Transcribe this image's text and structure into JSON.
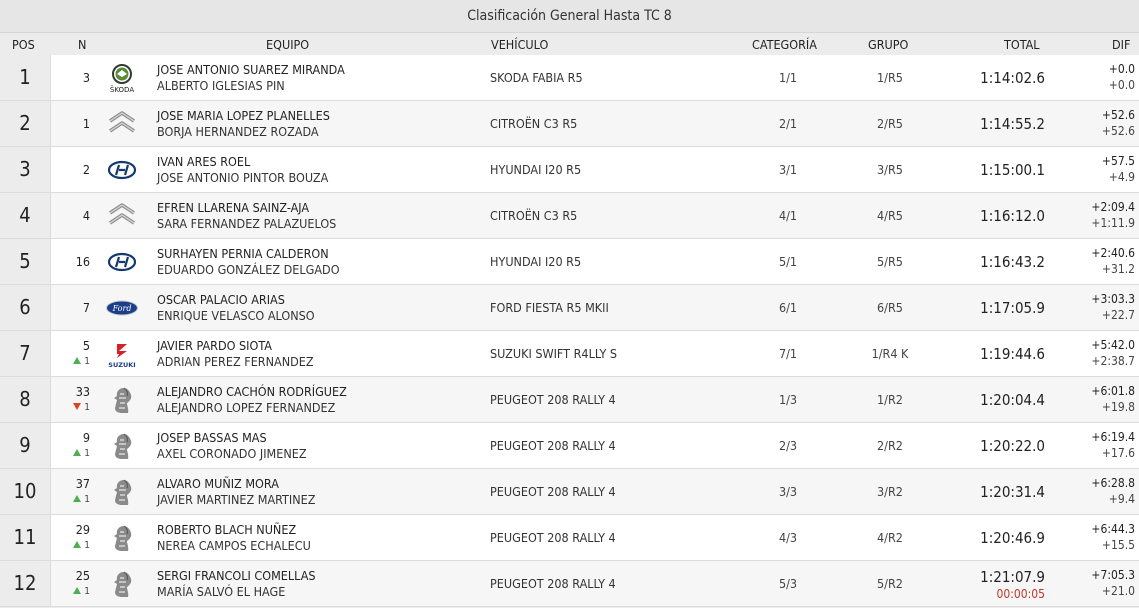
{
  "title": "Clasificación General Hasta TC 8",
  "headers": {
    "pos": "POS",
    "n": "N",
    "equipo": "EQUIPO",
    "vehiculo": "VEHÍCULO",
    "categoria": "CATEGORÍA",
    "grupo": "GRUPO",
    "total": "TOTAL",
    "dif": "DIF"
  },
  "colors": {
    "up": "#4caf50",
    "down": "#d9441f",
    "penalty": "#c0392b"
  },
  "rows": [
    {
      "pos": "1",
      "n": "3",
      "trend": "",
      "trend_dir": "",
      "brand": "skoda-logo",
      "brand_text": "ŠKODA",
      "driver": "JOSE ANTONIO SUAREZ MIRANDA",
      "codriver": "ALBERTO IGLESIAS PIN",
      "vehicle": "SKODA FABIA R5",
      "cat": "1/1",
      "grp": "1/R5",
      "total": "1:14:02.6",
      "penalty": "",
      "dif1": "+0.0",
      "dif2": "+0.0"
    },
    {
      "pos": "2",
      "n": "1",
      "trend": "",
      "trend_dir": "",
      "brand": "citroen-logo",
      "brand_text": "",
      "driver": "JOSE MARIA LOPEZ PLANELLES",
      "codriver": "BORJA HERNANDEZ ROZADA",
      "vehicle": "CITROËN C3 R5",
      "cat": "2/1",
      "grp": "2/R5",
      "total": "1:14:55.2",
      "penalty": "",
      "dif1": "+52.6",
      "dif2": "+52.6"
    },
    {
      "pos": "3",
      "n": "2",
      "trend": "",
      "trend_dir": "",
      "brand": "hyundai-logo",
      "brand_text": "",
      "driver": "IVAN ARES ROEL",
      "codriver": "JOSE ANTONIO PINTOR BOUZA",
      "vehicle": "HYUNDAI I20 R5",
      "cat": "3/1",
      "grp": "3/R5",
      "total": "1:15:00.1",
      "penalty": "",
      "dif1": "+57.5",
      "dif2": "+4.9"
    },
    {
      "pos": "4",
      "n": "4",
      "trend": "",
      "trend_dir": "",
      "brand": "citroen-logo",
      "brand_text": "",
      "driver": "EFREN LLARENA SAINZ-AJA",
      "codriver": "SARA FERNANDEZ PALAZUELOS",
      "vehicle": "CITROËN C3 R5",
      "cat": "4/1",
      "grp": "4/R5",
      "total": "1:16:12.0",
      "penalty": "",
      "dif1": "+2:09.4",
      "dif2": "+1:11.9"
    },
    {
      "pos": "5",
      "n": "16",
      "trend": "",
      "trend_dir": "",
      "brand": "hyundai-logo",
      "brand_text": "",
      "driver": "SURHAYEN PERNIA CALDERON",
      "codriver": "EDUARDO GONZÁLEZ DELGADO",
      "vehicle": "HYUNDAI I20 R5",
      "cat": "5/1",
      "grp": "5/R5",
      "total": "1:16:43.2",
      "penalty": "",
      "dif1": "+2:40.6",
      "dif2": "+31.2"
    },
    {
      "pos": "6",
      "n": "7",
      "trend": "",
      "trend_dir": "",
      "brand": "ford-logo",
      "brand_text": "Ford",
      "driver": "OSCAR PALACIO ARIAS",
      "codriver": "ENRIQUE VELASCO ALONSO",
      "vehicle": "FORD FIESTA R5 MKII",
      "cat": "6/1",
      "grp": "6/R5",
      "total": "1:17:05.9",
      "penalty": "",
      "dif1": "+3:03.3",
      "dif2": "+22.7"
    },
    {
      "pos": "7",
      "n": "5",
      "trend": "1",
      "trend_dir": "up",
      "brand": "suzuki-logo",
      "brand_text": "SUZUKI",
      "driver": "JAVIER PARDO SIOTA",
      "codriver": "ADRIAN PEREZ FERNANDEZ",
      "vehicle": "SUZUKI SWIFT R4LLY S",
      "cat": "7/1",
      "grp": "1/R4 K",
      "total": "1:19:44.6",
      "penalty": "",
      "dif1": "+5:42.0",
      "dif2": "+2:38.7"
    },
    {
      "pos": "8",
      "n": "33",
      "trend": "1",
      "trend_dir": "down",
      "brand": "peugeot-logo",
      "brand_text": "",
      "driver": "ALEJANDRO CACHÓN RODRÍGUEZ",
      "codriver": "ALEJANDRO LOPEZ FERNANDEZ",
      "vehicle": "PEUGEOT 208 RALLY 4",
      "cat": "1/3",
      "grp": "1/R2",
      "total": "1:20:04.4",
      "penalty": "",
      "dif1": "+6:01.8",
      "dif2": "+19.8"
    },
    {
      "pos": "9",
      "n": "9",
      "trend": "1",
      "trend_dir": "up",
      "brand": "peugeot-logo",
      "brand_text": "",
      "driver": "JOSEP BASSAS MAS",
      "codriver": "AXEL CORONADO JIMENEZ",
      "vehicle": "PEUGEOT 208 RALLY 4",
      "cat": "2/3",
      "grp": "2/R2",
      "total": "1:20:22.0",
      "penalty": "",
      "dif1": "+6:19.4",
      "dif2": "+17.6"
    },
    {
      "pos": "10",
      "n": "37",
      "trend": "1",
      "trend_dir": "up",
      "brand": "peugeot-logo",
      "brand_text": "",
      "driver": "ALVARO MUÑIZ MORA",
      "codriver": "JAVIER MARTINEZ MARTINEZ",
      "vehicle": "PEUGEOT 208 RALLY 4",
      "cat": "3/3",
      "grp": "3/R2",
      "total": "1:20:31.4",
      "penalty": "",
      "dif1": "+6:28.8",
      "dif2": "+9.4"
    },
    {
      "pos": "11",
      "n": "29",
      "trend": "1",
      "trend_dir": "up",
      "brand": "peugeot-logo",
      "brand_text": "",
      "driver": "ROBERTO BLACH NUÑEZ",
      "codriver": "NEREA CAMPOS ECHALECU",
      "vehicle": "PEUGEOT 208 RALLY 4",
      "cat": "4/3",
      "grp": "4/R2",
      "total": "1:20:46.9",
      "penalty": "",
      "dif1": "+6:44.3",
      "dif2": "+15.5"
    },
    {
      "pos": "12",
      "n": "25",
      "trend": "1",
      "trend_dir": "up",
      "brand": "peugeot-logo",
      "brand_text": "",
      "driver": "SERGI FRANCOLI COMELLAS",
      "codriver": "MARÍA SALVÓ EL HAGE",
      "vehicle": "PEUGEOT 208 RALLY 4",
      "cat": "5/3",
      "grp": "5/R2",
      "total": "1:21:07.9",
      "penalty": "00:00:05",
      "dif1": "+7:05.3",
      "dif2": "+21.0"
    }
  ]
}
